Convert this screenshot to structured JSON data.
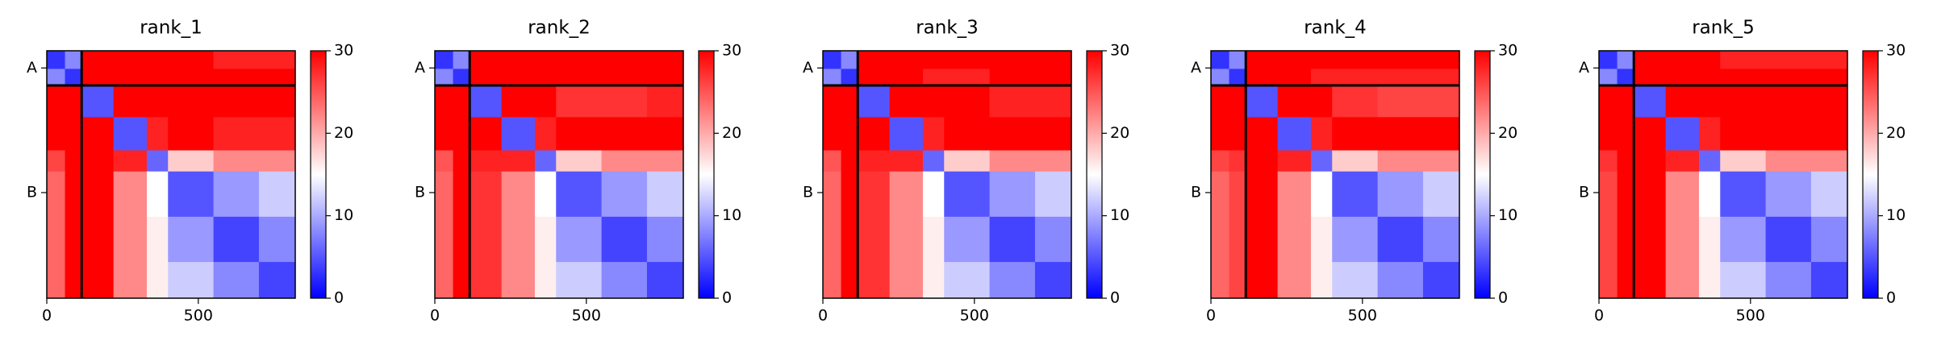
{
  "chart_data": [
    {
      "type": "heatmap",
      "title": "rank_1",
      "colormap": "bwr",
      "edges": [
        0,
        60,
        115,
        220,
        330,
        400,
        550,
        700,
        820
      ],
      "values": [
        [
          3,
          8,
          30,
          30,
          30,
          30,
          28,
          28
        ],
        [
          8,
          3,
          30,
          30,
          30,
          30,
          30,
          30
        ],
        [
          30,
          30,
          5,
          30,
          30,
          30,
          30,
          30
        ],
        [
          30,
          30,
          30,
          5,
          28,
          30,
          28,
          28
        ],
        [
          26,
          30,
          30,
          28,
          6,
          18,
          22,
          22
        ],
        [
          24,
          30,
          30,
          22,
          15,
          5,
          9,
          12
        ],
        [
          24,
          30,
          30,
          22,
          16,
          9,
          4,
          8
        ],
        [
          24,
          30,
          30,
          22,
          16,
          12,
          8,
          4
        ]
      ],
      "xlim": [
        0,
        820
      ],
      "ylim": [
        820,
        0
      ],
      "xticks": [
        0,
        500
      ],
      "yticks": [
        {
          "value": 57,
          "label": "A"
        },
        {
          "value": 470,
          "label": "B"
        }
      ],
      "chain_breaks": [
        115
      ],
      "clim": [
        0,
        30
      ],
      "cticks": [
        0,
        10,
        20,
        30
      ]
    },
    {
      "type": "heatmap",
      "title": "rank_2",
      "colormap": "bwr",
      "edges": [
        0,
        60,
        115,
        220,
        330,
        400,
        550,
        700,
        820
      ],
      "values": [
        [
          3,
          8,
          30,
          30,
          30,
          30,
          30,
          30
        ],
        [
          8,
          3,
          30,
          30,
          30,
          30,
          30,
          30
        ],
        [
          30,
          30,
          5,
          30,
          30,
          27,
          27,
          28
        ],
        [
          30,
          30,
          30,
          5,
          28,
          30,
          30,
          30
        ],
        [
          25,
          30,
          28,
          28,
          6,
          18,
          22,
          22
        ],
        [
          24,
          30,
          27,
          22,
          15,
          5,
          9,
          12
        ],
        [
          24,
          30,
          27,
          22,
          16,
          9,
          4,
          8
        ],
        [
          24,
          30,
          27,
          22,
          16,
          12,
          8,
          4
        ]
      ],
      "xlim": [
        0,
        820
      ],
      "ylim": [
        820,
        0
      ],
      "xticks": [
        0,
        500
      ],
      "yticks": [
        {
          "value": 57,
          "label": "A"
        },
        {
          "value": 470,
          "label": "B"
        }
      ],
      "chain_breaks": [
        115
      ],
      "clim": [
        0,
        30
      ],
      "cticks": [
        0,
        10,
        20,
        30
      ]
    },
    {
      "type": "heatmap",
      "title": "rank_3",
      "colormap": "bwr",
      "edges": [
        0,
        60,
        115,
        220,
        330,
        400,
        550,
        700,
        820
      ],
      "values": [
        [
          3,
          8,
          30,
          30,
          30,
          30,
          30,
          30
        ],
        [
          8,
          3,
          30,
          30,
          28,
          28,
          30,
          30
        ],
        [
          30,
          30,
          5,
          30,
          30,
          30,
          28,
          28
        ],
        [
          30,
          30,
          30,
          5,
          28,
          30,
          30,
          30
        ],
        [
          25,
          30,
          28,
          28,
          6,
          18,
          22,
          22
        ],
        [
          24,
          30,
          27,
          22,
          15,
          5,
          9,
          12
        ],
        [
          24,
          30,
          27,
          22,
          16,
          9,
          4,
          8
        ],
        [
          24,
          30,
          27,
          22,
          16,
          12,
          8,
          4
        ]
      ],
      "xlim": [
        0,
        820
      ],
      "ylim": [
        820,
        0
      ],
      "xticks": [
        0,
        500
      ],
      "yticks": [
        {
          "value": 57,
          "label": "A"
        },
        {
          "value": 470,
          "label": "B"
        }
      ],
      "chain_breaks": [
        115
      ],
      "clim": [
        0,
        30
      ],
      "cticks": [
        0,
        10,
        20,
        30
      ]
    },
    {
      "type": "heatmap",
      "title": "rank_4",
      "colormap": "bwr",
      "edges": [
        0,
        60,
        115,
        220,
        330,
        400,
        550,
        700,
        820
      ],
      "values": [
        [
          3,
          8,
          30,
          30,
          30,
          30,
          30,
          30
        ],
        [
          8,
          3,
          30,
          30,
          28,
          28,
          28,
          28
        ],
        [
          30,
          30,
          5,
          30,
          30,
          27,
          26,
          26
        ],
        [
          30,
          30,
          30,
          5,
          28,
          30,
          30,
          30
        ],
        [
          26,
          27,
          30,
          28,
          6,
          18,
          22,
          22
        ],
        [
          24,
          26,
          30,
          22,
          15,
          5,
          9,
          12
        ],
        [
          24,
          26,
          30,
          22,
          16,
          9,
          4,
          8
        ],
        [
          24,
          26,
          30,
          22,
          16,
          12,
          8,
          4
        ]
      ],
      "xlim": [
        0,
        820
      ],
      "ylim": [
        820,
        0
      ],
      "xticks": [
        0,
        500
      ],
      "yticks": [
        {
          "value": 57,
          "label": "A"
        },
        {
          "value": 470,
          "label": "B"
        }
      ],
      "chain_breaks": [
        115
      ],
      "clim": [
        0,
        30
      ],
      "cticks": [
        0,
        10,
        20,
        30
      ]
    },
    {
      "type": "heatmap",
      "title": "rank_5",
      "colormap": "bwr",
      "edges": [
        0,
        60,
        115,
        220,
        330,
        400,
        550,
        700,
        820
      ],
      "values": [
        [
          3,
          8,
          30,
          30,
          30,
          28,
          28,
          28
        ],
        [
          8,
          3,
          30,
          30,
          30,
          30,
          30,
          30
        ],
        [
          30,
          30,
          5,
          30,
          30,
          30,
          30,
          30
        ],
        [
          30,
          30,
          30,
          5,
          28,
          30,
          30,
          30
        ],
        [
          27,
          30,
          30,
          28,
          6,
          18,
          22,
          22
        ],
        [
          26,
          30,
          30,
          22,
          15,
          5,
          9,
          12
        ],
        [
          26,
          30,
          30,
          22,
          16,
          9,
          4,
          8
        ],
        [
          26,
          30,
          30,
          22,
          16,
          12,
          8,
          4
        ]
      ],
      "xlim": [
        0,
        820
      ],
      "ylim": [
        820,
        0
      ],
      "xticks": [
        0,
        500
      ],
      "yticks": [
        {
          "value": 57,
          "label": "A"
        },
        {
          "value": 470,
          "label": "B"
        }
      ],
      "chain_breaks": [
        115
      ],
      "clim": [
        0,
        30
      ],
      "cticks": [
        0,
        10,
        20,
        30
      ]
    }
  ]
}
